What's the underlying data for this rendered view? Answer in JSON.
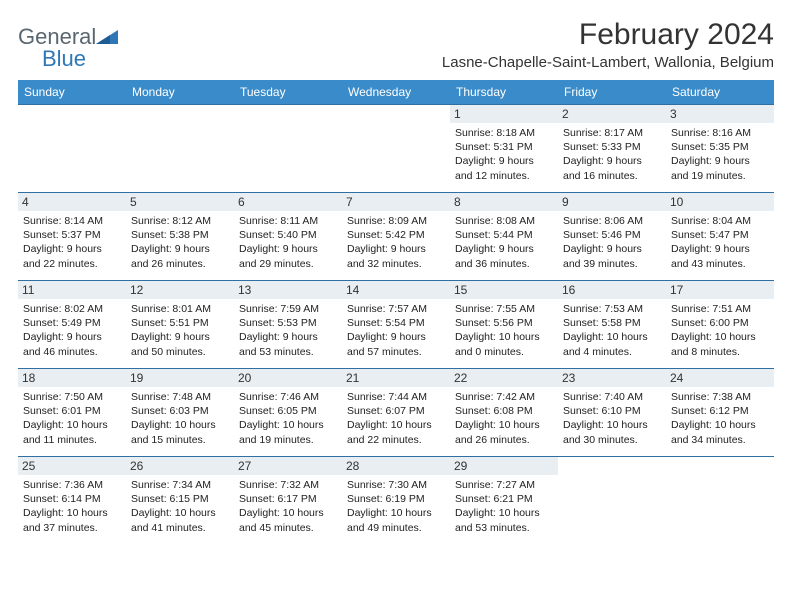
{
  "brand": {
    "text1": "General",
    "text2": "Blue"
  },
  "title": "February 2024",
  "location": "Lasne-Chapelle-Saint-Lambert, Wallonia, Belgium",
  "colors": {
    "header_bg": "#3a8bc9",
    "header_text": "#ffffff",
    "row_border": "#2f6fa3",
    "daynum_bg": "#e8eef2",
    "brand_gray": "#5a6770",
    "brand_blue": "#2f78b8"
  },
  "dayNames": [
    "Sunday",
    "Monday",
    "Tuesday",
    "Wednesday",
    "Thursday",
    "Friday",
    "Saturday"
  ],
  "weeks": [
    [
      {
        "n": "",
        "sr": "",
        "ss": "",
        "dl1": "",
        "dl2": ""
      },
      {
        "n": "",
        "sr": "",
        "ss": "",
        "dl1": "",
        "dl2": ""
      },
      {
        "n": "",
        "sr": "",
        "ss": "",
        "dl1": "",
        "dl2": ""
      },
      {
        "n": "",
        "sr": "",
        "ss": "",
        "dl1": "",
        "dl2": ""
      },
      {
        "n": "1",
        "sr": "Sunrise: 8:18 AM",
        "ss": "Sunset: 5:31 PM",
        "dl1": "Daylight: 9 hours",
        "dl2": "and 12 minutes."
      },
      {
        "n": "2",
        "sr": "Sunrise: 8:17 AM",
        "ss": "Sunset: 5:33 PM",
        "dl1": "Daylight: 9 hours",
        "dl2": "and 16 minutes."
      },
      {
        "n": "3",
        "sr": "Sunrise: 8:16 AM",
        "ss": "Sunset: 5:35 PM",
        "dl1": "Daylight: 9 hours",
        "dl2": "and 19 minutes."
      }
    ],
    [
      {
        "n": "4",
        "sr": "Sunrise: 8:14 AM",
        "ss": "Sunset: 5:37 PM",
        "dl1": "Daylight: 9 hours",
        "dl2": "and 22 minutes."
      },
      {
        "n": "5",
        "sr": "Sunrise: 8:12 AM",
        "ss": "Sunset: 5:38 PM",
        "dl1": "Daylight: 9 hours",
        "dl2": "and 26 minutes."
      },
      {
        "n": "6",
        "sr": "Sunrise: 8:11 AM",
        "ss": "Sunset: 5:40 PM",
        "dl1": "Daylight: 9 hours",
        "dl2": "and 29 minutes."
      },
      {
        "n": "7",
        "sr": "Sunrise: 8:09 AM",
        "ss": "Sunset: 5:42 PM",
        "dl1": "Daylight: 9 hours",
        "dl2": "and 32 minutes."
      },
      {
        "n": "8",
        "sr": "Sunrise: 8:08 AM",
        "ss": "Sunset: 5:44 PM",
        "dl1": "Daylight: 9 hours",
        "dl2": "and 36 minutes."
      },
      {
        "n": "9",
        "sr": "Sunrise: 8:06 AM",
        "ss": "Sunset: 5:46 PM",
        "dl1": "Daylight: 9 hours",
        "dl2": "and 39 minutes."
      },
      {
        "n": "10",
        "sr": "Sunrise: 8:04 AM",
        "ss": "Sunset: 5:47 PM",
        "dl1": "Daylight: 9 hours",
        "dl2": "and 43 minutes."
      }
    ],
    [
      {
        "n": "11",
        "sr": "Sunrise: 8:02 AM",
        "ss": "Sunset: 5:49 PM",
        "dl1": "Daylight: 9 hours",
        "dl2": "and 46 minutes."
      },
      {
        "n": "12",
        "sr": "Sunrise: 8:01 AM",
        "ss": "Sunset: 5:51 PM",
        "dl1": "Daylight: 9 hours",
        "dl2": "and 50 minutes."
      },
      {
        "n": "13",
        "sr": "Sunrise: 7:59 AM",
        "ss": "Sunset: 5:53 PM",
        "dl1": "Daylight: 9 hours",
        "dl2": "and 53 minutes."
      },
      {
        "n": "14",
        "sr": "Sunrise: 7:57 AM",
        "ss": "Sunset: 5:54 PM",
        "dl1": "Daylight: 9 hours",
        "dl2": "and 57 minutes."
      },
      {
        "n": "15",
        "sr": "Sunrise: 7:55 AM",
        "ss": "Sunset: 5:56 PM",
        "dl1": "Daylight: 10 hours",
        "dl2": "and 0 minutes."
      },
      {
        "n": "16",
        "sr": "Sunrise: 7:53 AM",
        "ss": "Sunset: 5:58 PM",
        "dl1": "Daylight: 10 hours",
        "dl2": "and 4 minutes."
      },
      {
        "n": "17",
        "sr": "Sunrise: 7:51 AM",
        "ss": "Sunset: 6:00 PM",
        "dl1": "Daylight: 10 hours",
        "dl2": "and 8 minutes."
      }
    ],
    [
      {
        "n": "18",
        "sr": "Sunrise: 7:50 AM",
        "ss": "Sunset: 6:01 PM",
        "dl1": "Daylight: 10 hours",
        "dl2": "and 11 minutes."
      },
      {
        "n": "19",
        "sr": "Sunrise: 7:48 AM",
        "ss": "Sunset: 6:03 PM",
        "dl1": "Daylight: 10 hours",
        "dl2": "and 15 minutes."
      },
      {
        "n": "20",
        "sr": "Sunrise: 7:46 AM",
        "ss": "Sunset: 6:05 PM",
        "dl1": "Daylight: 10 hours",
        "dl2": "and 19 minutes."
      },
      {
        "n": "21",
        "sr": "Sunrise: 7:44 AM",
        "ss": "Sunset: 6:07 PM",
        "dl1": "Daylight: 10 hours",
        "dl2": "and 22 minutes."
      },
      {
        "n": "22",
        "sr": "Sunrise: 7:42 AM",
        "ss": "Sunset: 6:08 PM",
        "dl1": "Daylight: 10 hours",
        "dl2": "and 26 minutes."
      },
      {
        "n": "23",
        "sr": "Sunrise: 7:40 AM",
        "ss": "Sunset: 6:10 PM",
        "dl1": "Daylight: 10 hours",
        "dl2": "and 30 minutes."
      },
      {
        "n": "24",
        "sr": "Sunrise: 7:38 AM",
        "ss": "Sunset: 6:12 PM",
        "dl1": "Daylight: 10 hours",
        "dl2": "and 34 minutes."
      }
    ],
    [
      {
        "n": "25",
        "sr": "Sunrise: 7:36 AM",
        "ss": "Sunset: 6:14 PM",
        "dl1": "Daylight: 10 hours",
        "dl2": "and 37 minutes."
      },
      {
        "n": "26",
        "sr": "Sunrise: 7:34 AM",
        "ss": "Sunset: 6:15 PM",
        "dl1": "Daylight: 10 hours",
        "dl2": "and 41 minutes."
      },
      {
        "n": "27",
        "sr": "Sunrise: 7:32 AM",
        "ss": "Sunset: 6:17 PM",
        "dl1": "Daylight: 10 hours",
        "dl2": "and 45 minutes."
      },
      {
        "n": "28",
        "sr": "Sunrise: 7:30 AM",
        "ss": "Sunset: 6:19 PM",
        "dl1": "Daylight: 10 hours",
        "dl2": "and 49 minutes."
      },
      {
        "n": "29",
        "sr": "Sunrise: 7:27 AM",
        "ss": "Sunset: 6:21 PM",
        "dl1": "Daylight: 10 hours",
        "dl2": "and 53 minutes."
      },
      {
        "n": "",
        "sr": "",
        "ss": "",
        "dl1": "",
        "dl2": ""
      },
      {
        "n": "",
        "sr": "",
        "ss": "",
        "dl1": "",
        "dl2": ""
      }
    ]
  ]
}
